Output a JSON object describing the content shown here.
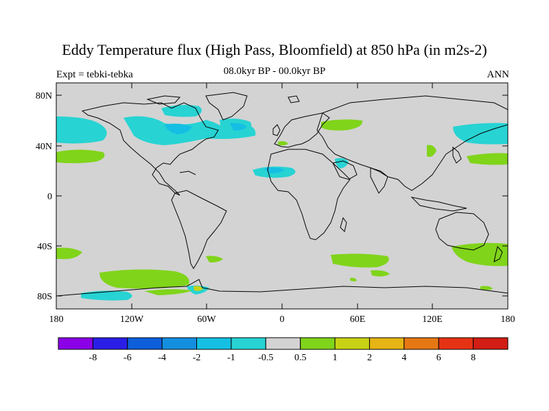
{
  "title": "Eddy Temperature flux (High Pass, Bloomfield) at 850 hPa (in m2s-2)",
  "subtitle_left": "Expt = tebki-tebka",
  "subtitle_center": "08.0kyr BP - 00.0kyr BP",
  "subtitle_right": "ANN",
  "colors": {
    "land_ocean_neutral": "#d3d3d3",
    "coastline": "#000000",
    "negative_small": "#27d3d3",
    "negative_mid": "#14bfe3",
    "positive_small": "#80d41a"
  },
  "chart_data": {
    "type": "heatmap",
    "projection": "cylindrical equidistant",
    "xlim": [
      -180,
      180
    ],
    "ylim": [
      -90,
      90
    ],
    "lat_ticks": [
      "80N",
      "40N",
      "0",
      "40S",
      "80S"
    ],
    "lon_ticks": [
      "180",
      "120W",
      "60W",
      "0",
      "60E",
      "120E",
      "180"
    ],
    "colorbar": {
      "levels": [
        "-8",
        "-6",
        "-4",
        "-2",
        "-1",
        "-0.5",
        "0.5",
        "1",
        "2",
        "4",
        "6",
        "8"
      ],
      "colors": [
        "#8b00e6",
        "#2a1ee6",
        "#0d5fdb",
        "#148fe0",
        "#14bfe3",
        "#27d3d3",
        "#d3d3d3",
        "#80d41a",
        "#c8d214",
        "#e6b414",
        "#e67814",
        "#e63214",
        "#d21e14"
      ]
    }
  }
}
